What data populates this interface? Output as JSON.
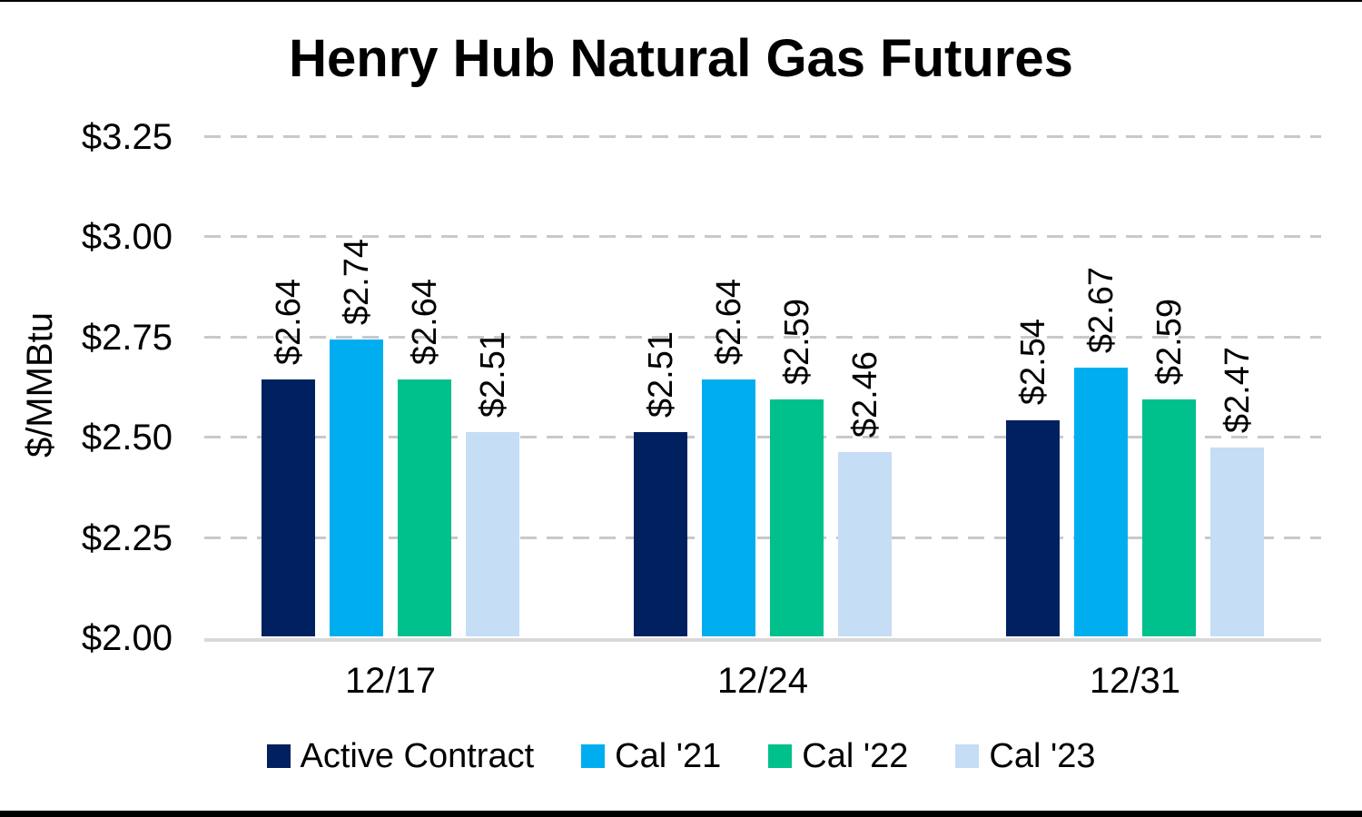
{
  "title": "Henry Hub Natural Gas Futures",
  "chart_data": {
    "type": "bar",
    "title": "Henry Hub Natural Gas Futures",
    "xlabel": "",
    "ylabel": "$/MMBtu",
    "ylim": [
      2.0,
      3.32
    ],
    "grid": "horizontal dashed",
    "legend_position": "bottom",
    "categories": [
      "12/17",
      "12/24",
      "12/31"
    ],
    "series": [
      {
        "name": "Active Contract",
        "color": "#002060",
        "values": [
          2.64,
          2.51,
          2.54
        ],
        "labels": [
          "$2.64",
          "$2.51",
          "$2.54"
        ]
      },
      {
        "name": "Cal '21",
        "color": "#00AEEF",
        "values": [
          2.74,
          2.64,
          2.67
        ],
        "labels": [
          "$2.74",
          "$2.64",
          "$2.67"
        ]
      },
      {
        "name": "Cal '22",
        "color": "#00C08B",
        "values": [
          2.64,
          2.59,
          2.59
        ],
        "labels": [
          "$2.64",
          "$2.59",
          "$2.59"
        ]
      },
      {
        "name": "Cal '23",
        "color": "#C5DDF5",
        "values": [
          2.51,
          2.46,
          2.47
        ],
        "labels": [
          "$2.51",
          "$2.46",
          "$2.47"
        ]
      }
    ],
    "y_ticks": [
      {
        "value": 2.0,
        "label": "$2.00"
      },
      {
        "value": 2.25,
        "label": "$2.25"
      },
      {
        "value": 2.5,
        "label": "$2.50"
      },
      {
        "value": 2.75,
        "label": "$2.75"
      },
      {
        "value": 3.0,
        "label": "$3.00"
      },
      {
        "value": 3.25,
        "label": "$3.25"
      }
    ]
  }
}
